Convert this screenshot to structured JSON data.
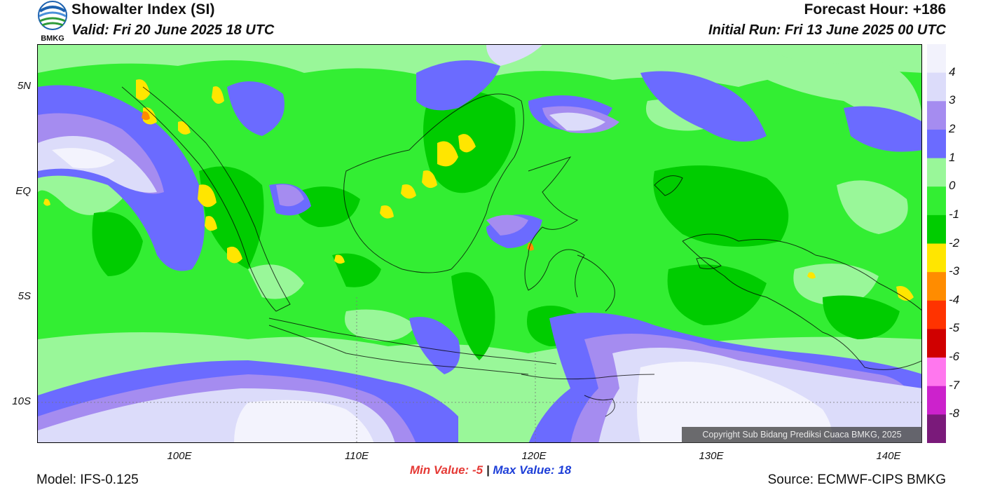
{
  "header": {
    "title": "Showalter Index (SI)",
    "valid": "Valid: Fri 20 June 2025 18 UTC",
    "forecast_hour": "Forecast Hour: +186",
    "initial_run": "Initial Run: Fri 13 June 2025 00 UTC",
    "logo_text": "BMKG"
  },
  "map": {
    "lat_labels": [
      "5N",
      "EQ",
      "5S",
      "10S"
    ],
    "lon_labels": [
      "100E",
      "110E",
      "120E",
      "130E",
      "140E"
    ],
    "copyright": "Copyright Sub Bidang Prediksi Cuaca BMKG, 2025",
    "colors": {
      "level_minus1": "#00cc00",
      "level_0": "#33ee33",
      "level_1": "#99f799",
      "level_2": "#6b6bff",
      "level_3": "#a58cf0",
      "level_4": "#dcdcfa",
      "level_5": "#f3f3fd",
      "level_minus2": "#ffe600",
      "border": "#000000"
    }
  },
  "colorbar": {
    "labels": [
      "4",
      "3",
      "2",
      "1",
      "0",
      "-1",
      "-2",
      "-3",
      "-4",
      "-5",
      "-6",
      "-7",
      "-8"
    ],
    "colors": [
      "#f2f2fc",
      "#dcdcfa",
      "#a58cf0",
      "#6b6bff",
      "#99f799",
      "#33ee33",
      "#00cc00",
      "#ffe600",
      "#ff8c00",
      "#ff3300",
      "#d00000",
      "#ff77ee",
      "#cc22cc",
      "#7a1a7a"
    ]
  },
  "stats": {
    "min_label": "Min Value:",
    "min_value": "-5",
    "separator": "|",
    "max_label": "Max Value:",
    "max_value": "18"
  },
  "footer": {
    "model": "Model: IFS-0.125",
    "source": "Source: ECMWF-CIPS BMKG"
  }
}
